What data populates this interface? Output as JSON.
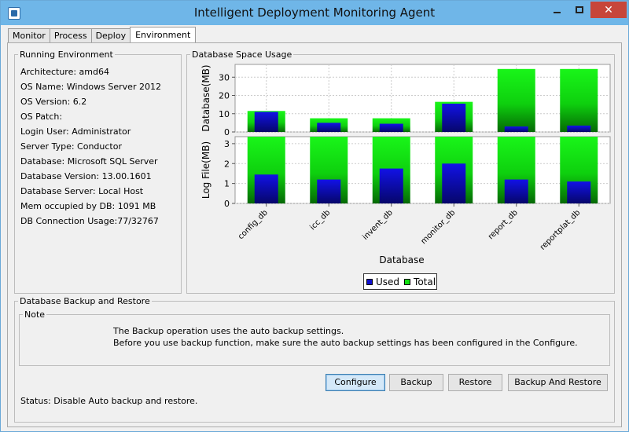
{
  "window": {
    "title": "Intelligent Deployment Monitoring Agent",
    "close_glyph": "✕"
  },
  "tabs": [
    {
      "label": "Monitor",
      "active": false
    },
    {
      "label": "Process",
      "active": false
    },
    {
      "label": "Deploy",
      "active": false
    },
    {
      "label": "Environment",
      "active": true
    }
  ],
  "running_environment": {
    "legend": "Running Environment",
    "rows": [
      "Architecture: amd64",
      "OS Name: Windows Server 2012",
      "OS Version: 6.2",
      "OS Patch:",
      "Login User: Administrator",
      "Server Type: Conductor",
      "Database: Microsoft SQL Server",
      "Database Version: 13.00.1601",
      "Database Server: Local Host",
      "Mem occupied by DB: 1091 MB",
      "DB Connection Usage:77/32767"
    ]
  },
  "space_usage": {
    "legend": "Database Space Usage"
  },
  "chart_data": {
    "type": "bar",
    "categories": [
      "config_db",
      "icc_db",
      "invent_db",
      "monitor_db",
      "report_db",
      "reportplat_db"
    ],
    "xlabel": "Database",
    "panels": [
      {
        "ylabel": "Database(MB)",
        "ylim": [
          0,
          37
        ],
        "yticks": [
          0,
          10,
          20,
          30
        ],
        "series": [
          {
            "name": "Total",
            "values": [
              11.5,
              7.5,
              7.5,
              16.5,
              34.5,
              34.5
            ]
          },
          {
            "name": "Used",
            "values": [
              11,
              5,
              4.5,
              15.5,
              3,
              3.5
            ]
          }
        ]
      },
      {
        "ylabel": "Log File(MB)",
        "ylim": [
          0,
          3.35
        ],
        "yticks": [
          0,
          1,
          2,
          3
        ],
        "series": [
          {
            "name": "Total",
            "values": [
              3.35,
              3.35,
              3.35,
              3.35,
              3.35,
              3.35
            ]
          },
          {
            "name": "Used",
            "values": [
              1.45,
              1.2,
              1.75,
              2.0,
              1.2,
              1.1
            ]
          }
        ]
      }
    ],
    "legend": {
      "position": "bottom",
      "items": [
        "Used",
        "Total"
      ]
    },
    "colors": {
      "used": "#1010d0",
      "total": "#10e010",
      "grid": "#cccccc"
    },
    "grid": true
  },
  "backup": {
    "legend": "Database Backup and Restore",
    "note_legend": "Note",
    "note_lines": [
      "The Backup operation uses the auto backup settings.",
      "Before you use backup function, make sure the auto backup settings has been configured in the Configure."
    ],
    "buttons": {
      "configure": "Configure",
      "backup": "Backup",
      "restore": "Restore",
      "backup_restore": "Backup And Restore"
    },
    "status": "Status: Disable Auto backup and restore."
  }
}
